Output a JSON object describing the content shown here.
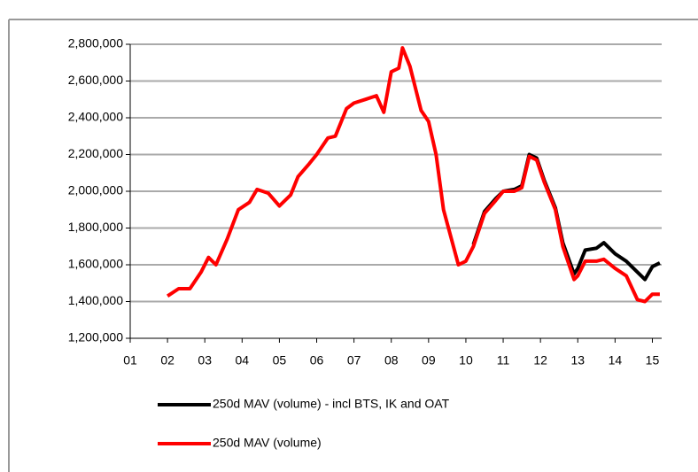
{
  "chart_data": {
    "type": "line",
    "x": [
      2002.0,
      2002.3,
      2002.6,
      2002.9,
      2003.1,
      2003.3,
      2003.6,
      2003.9,
      2004.2,
      2004.4,
      2004.7,
      2005.0,
      2005.3,
      2005.5,
      2005.8,
      2006.0,
      2006.3,
      2006.5,
      2006.8,
      2007.0,
      2007.3,
      2007.6,
      2007.8,
      2008.0,
      2008.2,
      2008.3,
      2008.5,
      2008.8,
      2009.0,
      2009.2,
      2009.4,
      2009.6,
      2009.8,
      2010.0,
      2010.2,
      2010.5,
      2010.8,
      2011.0,
      2011.3,
      2011.5,
      2011.7,
      2011.9,
      2012.1,
      2012.4,
      2012.6,
      2012.9,
      2013.0,
      2013.2,
      2013.5,
      2013.7,
      2014.0,
      2014.3,
      2014.6,
      2014.8,
      2015.0,
      2015.2
    ],
    "series": [
      {
        "name": "250d MAV (volume) - incl BTS, IK and OAT",
        "color": "#000000",
        "values": [
          null,
          null,
          null,
          null,
          null,
          null,
          null,
          null,
          null,
          null,
          null,
          null,
          null,
          null,
          null,
          null,
          null,
          null,
          null,
          null,
          null,
          null,
          null,
          null,
          null,
          null,
          null,
          null,
          null,
          null,
          null,
          null,
          null,
          null,
          1710000,
          1890000,
          1960000,
          2000000,
          2010000,
          2030000,
          2200000,
          2180000,
          2060000,
          1910000,
          1720000,
          1550000,
          1580000,
          1680000,
          1690000,
          1720000,
          1660000,
          1620000,
          1560000,
          1520000,
          1590000,
          1610000
        ]
      },
      {
        "name": "250d MAV (volume)",
        "color": "#ff0000",
        "values": [
          1430000,
          1470000,
          1470000,
          1560000,
          1640000,
          1600000,
          1740000,
          1900000,
          1940000,
          2010000,
          1990000,
          1920000,
          1980000,
          2080000,
          2150000,
          2200000,
          2290000,
          2300000,
          2450000,
          2480000,
          2500000,
          2520000,
          2430000,
          2650000,
          2670000,
          2780000,
          2680000,
          2440000,
          2380000,
          2200000,
          1900000,
          1750000,
          1600000,
          1620000,
          1700000,
          1880000,
          1950000,
          2000000,
          2000000,
          2020000,
          2190000,
          2170000,
          2050000,
          1900000,
          1700000,
          1520000,
          1540000,
          1620000,
          1620000,
          1630000,
          1580000,
          1540000,
          1410000,
          1400000,
          1440000,
          1440000
        ]
      }
    ],
    "xlim": [
      2001,
      2015.25
    ],
    "xticks": [
      {
        "value": 2001,
        "label": "01"
      },
      {
        "value": 2002,
        "label": "02"
      },
      {
        "value": 2003,
        "label": "03"
      },
      {
        "value": 2004,
        "label": "04"
      },
      {
        "value": 2005,
        "label": "05"
      },
      {
        "value": 2006,
        "label": "06"
      },
      {
        "value": 2007,
        "label": "07"
      },
      {
        "value": 2008,
        "label": "08"
      },
      {
        "value": 2009,
        "label": "09"
      },
      {
        "value": 2010,
        "label": "10"
      },
      {
        "value": 2011,
        "label": "11"
      },
      {
        "value": 2012,
        "label": "12"
      },
      {
        "value": 2013,
        "label": "13"
      },
      {
        "value": 2014,
        "label": "14"
      },
      {
        "value": 2015,
        "label": "15"
      }
    ],
    "ylim": [
      1200000,
      2800000
    ],
    "yticks": [
      {
        "value": 1200000,
        "label": "1,200,000"
      },
      {
        "value": 1400000,
        "label": "1,400,000"
      },
      {
        "value": 1600000,
        "label": "1,600,000"
      },
      {
        "value": 1800000,
        "label": "1,800,000"
      },
      {
        "value": 2000000,
        "label": "2,000,000"
      },
      {
        "value": 2200000,
        "label": "2,200,000"
      },
      {
        "value": 2400000,
        "label": "2,400,000"
      },
      {
        "value": 2600000,
        "label": "2,600,000"
      },
      {
        "value": 2800000,
        "label": "2,800,000"
      }
    ],
    "grid": true
  }
}
